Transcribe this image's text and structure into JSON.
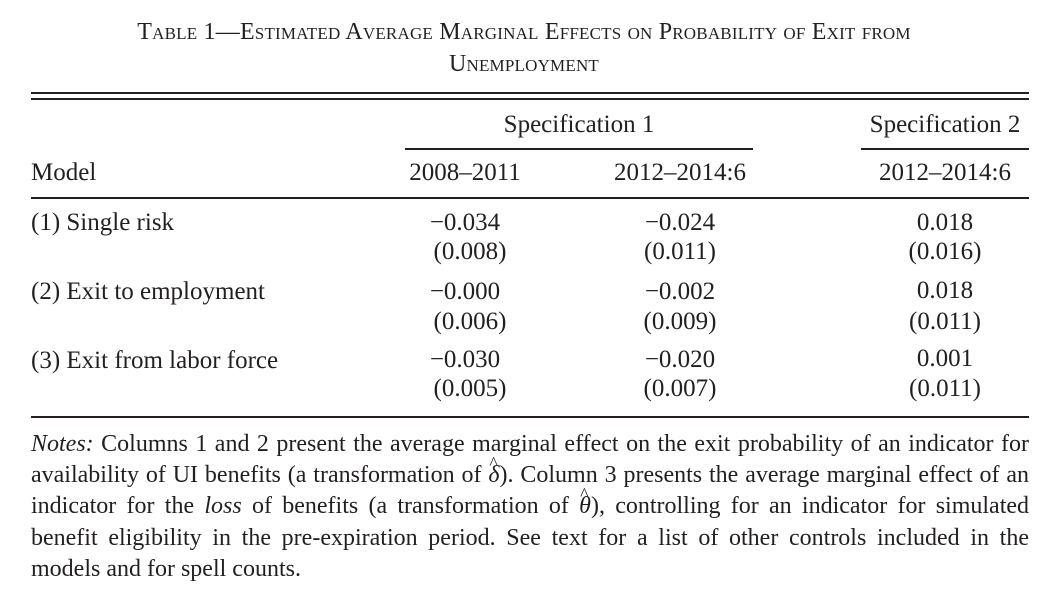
{
  "table": {
    "title_line_1": "Table 1—Estimated Average Marginal Effects on Probability of Exit from",
    "title_line_2": "Unemployment",
    "spec1_label": "Specification 1",
    "spec2_label": "Specification 2",
    "model_header": "Model",
    "columns": [
      "2008–2011",
      "2012–2014:6",
      "2012–2014:6"
    ],
    "rows": [
      {
        "label": "(1) Single risk",
        "values": [
          "−0.034",
          "−0.024",
          "0.018"
        ],
        "se": [
          "(0.008)",
          "(0.011)",
          "(0.016)"
        ]
      },
      {
        "label": "(2) Exit to employment",
        "values": [
          "−0.000",
          "−0.002",
          "0.018"
        ],
        "se": [
          "(0.006)",
          "(0.009)",
          "(0.011)"
        ]
      },
      {
        "label": "(3) Exit from labor force",
        "values": [
          "−0.030",
          "−0.020",
          "0.001"
        ],
        "se": [
          "(0.005)",
          "(0.007)",
          "(0.011)"
        ]
      }
    ]
  },
  "notes": {
    "lead": "Notes:",
    "part1": " Columns 1 and 2 present the average marginal effect on the exit probability of an indicator for availability of UI benefits (a transformation of ",
    "delta": "δ",
    "part2": "). Column 3 presents the average marginal effect of an indicator for the ",
    "loss": "loss",
    "part3": " of benefits (a transformation of ",
    "theta": "θ",
    "part4": "), controlling for an indicator for simulated benefit eligibility in the pre-expiration period. See text for a list of other controls included in the models and for spell counts."
  }
}
